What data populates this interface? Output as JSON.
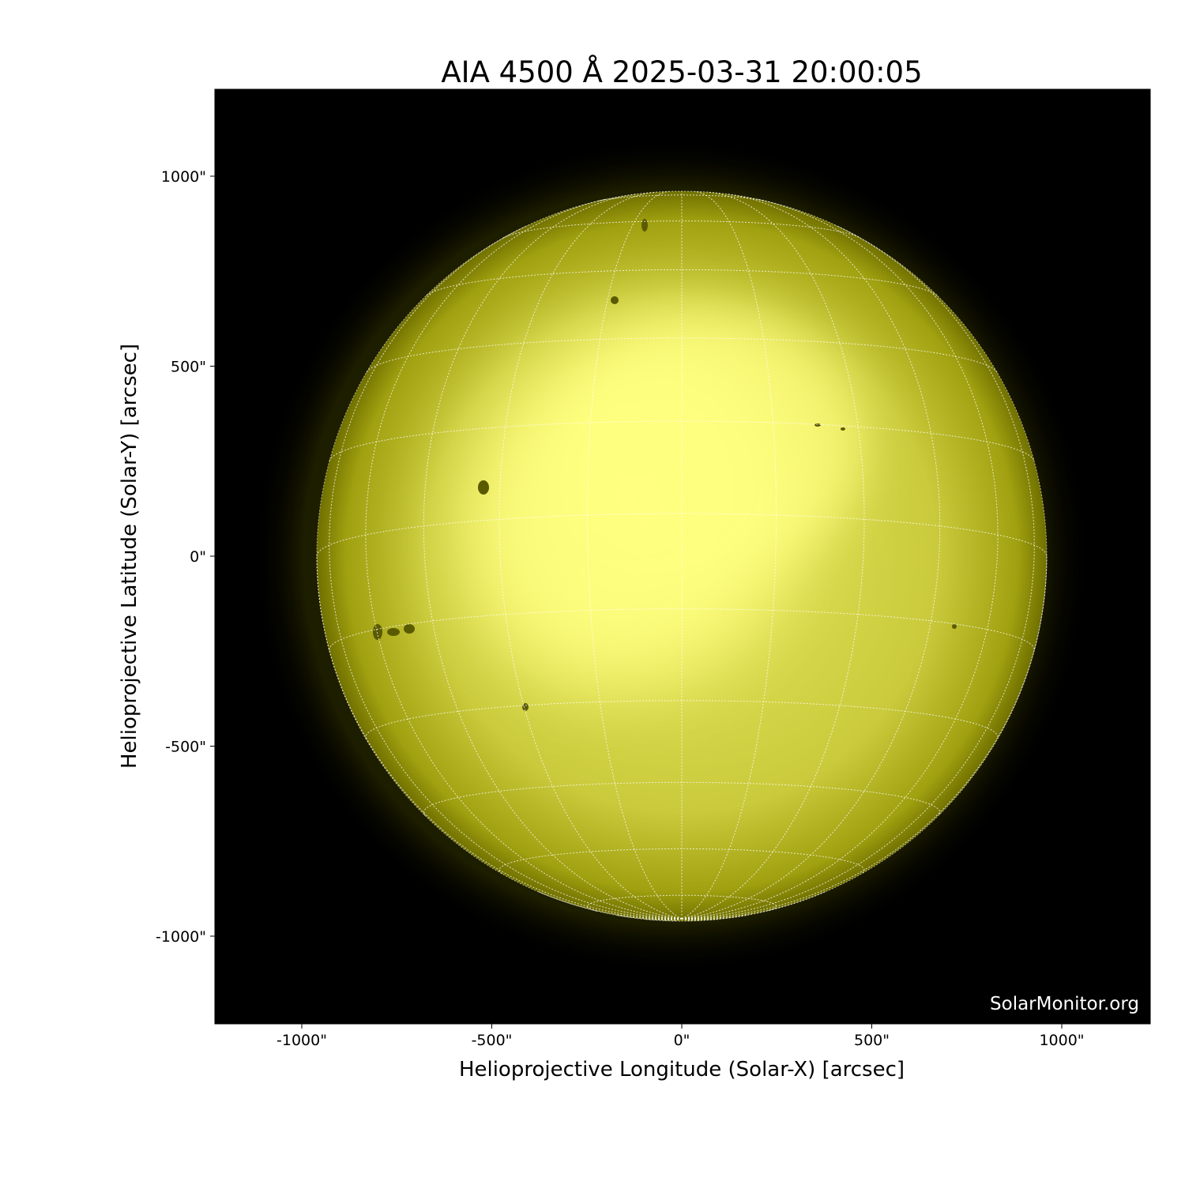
{
  "chart_data": {
    "type": "image",
    "title": "AIA 4500 Å 2025-03-31 20:00:05",
    "xlabel": "Helioprojective Longitude (Solar-X) [arcsec]",
    "ylabel": "Helioprojective Latitude (Solar-Y) [arcsec]",
    "xlim": [
      -1230,
      1230
    ],
    "ylim": [
      -1230,
      1230
    ],
    "xticks": [
      -1000,
      -500,
      0,
      500,
      1000
    ],
    "xtick_labels": [
      "-1000\"",
      "-500\"",
      "0\"",
      "500\"",
      "1000\""
    ],
    "yticks": [
      1000,
      500,
      0,
      -500,
      -1000
    ],
    "ytick_labels": [
      "1000\"",
      "500\"",
      "0\"",
      "-500\"",
      "-1000\""
    ],
    "solar_radius_arcsec": 960,
    "grid": "heliographic lat/lon every 15°, dotted white",
    "colormap": "yellow",
    "watermark": "SolarMonitor.org"
  },
  "colors": {
    "background": "#000000",
    "disk_bright": "#ffff80",
    "disk_limb": "#6e6e00",
    "grid": "#ffffff"
  }
}
